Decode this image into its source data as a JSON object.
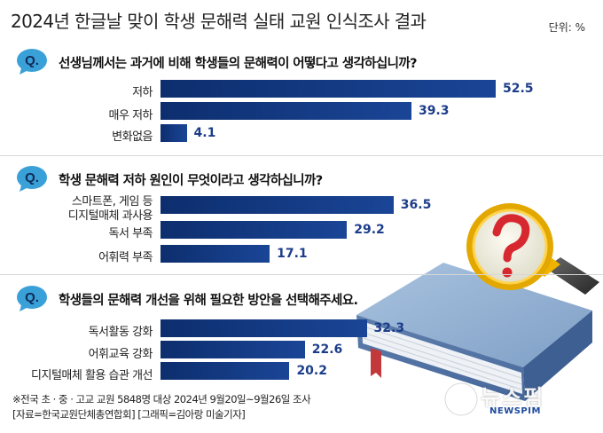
{
  "header": {
    "title": "2024년 한글날 맞이 학생 문해력 실태 교원 인식조사 결과",
    "unit": "단위: %"
  },
  "q_badge_text": "Q.",
  "colors": {
    "bar": "#13378a",
    "value": "#1c3d8a",
    "badge": "#3aa0d8"
  },
  "chart_data": [
    {
      "type": "bar",
      "title": "선생님께서는 과거에 비해 학생들의 문해력이 어떻다고 생각하십니까?",
      "categories": [
        "저하",
        "매우 저하",
        "변화없음"
      ],
      "values": [
        52.5,
        39.3,
        4.1
      ],
      "unit": "%"
    },
    {
      "type": "bar",
      "title": "학생 문해력 저하 원인이 무엇이라고 생각하십니까?",
      "categories": [
        "스마트폰, 게임 등 디지털매체 과사용",
        "독서 부족",
        "어휘력 부족"
      ],
      "category_lines": [
        [
          "스마트폰, 게임 등",
          "디지털매체 과사용"
        ],
        [
          "독서 부족"
        ],
        [
          "어휘력 부족"
        ]
      ],
      "values": [
        36.5,
        29.2,
        17.1
      ],
      "unit": "%"
    },
    {
      "type": "bar",
      "title": "학생들의 문해력 개선을 위해 필요한 방안을 선택해주세요.",
      "categories": [
        "독서활동 강화",
        "어휘교육 강화",
        "디지털매체 활용 습관 개선"
      ],
      "values": [
        32.3,
        22.6,
        20.2
      ],
      "unit": "%"
    }
  ],
  "footnotes": [
    "※전국 초 · 중 · 고교 교원 5848명 대상 2024년 9월20일~9월26일 조사",
    "[자료=한국교원단체총연합회] [그래픽=김아랑 미술기자]"
  ],
  "watermark": {
    "text": "뉴스핌",
    "sub": "NEWSPIM"
  }
}
